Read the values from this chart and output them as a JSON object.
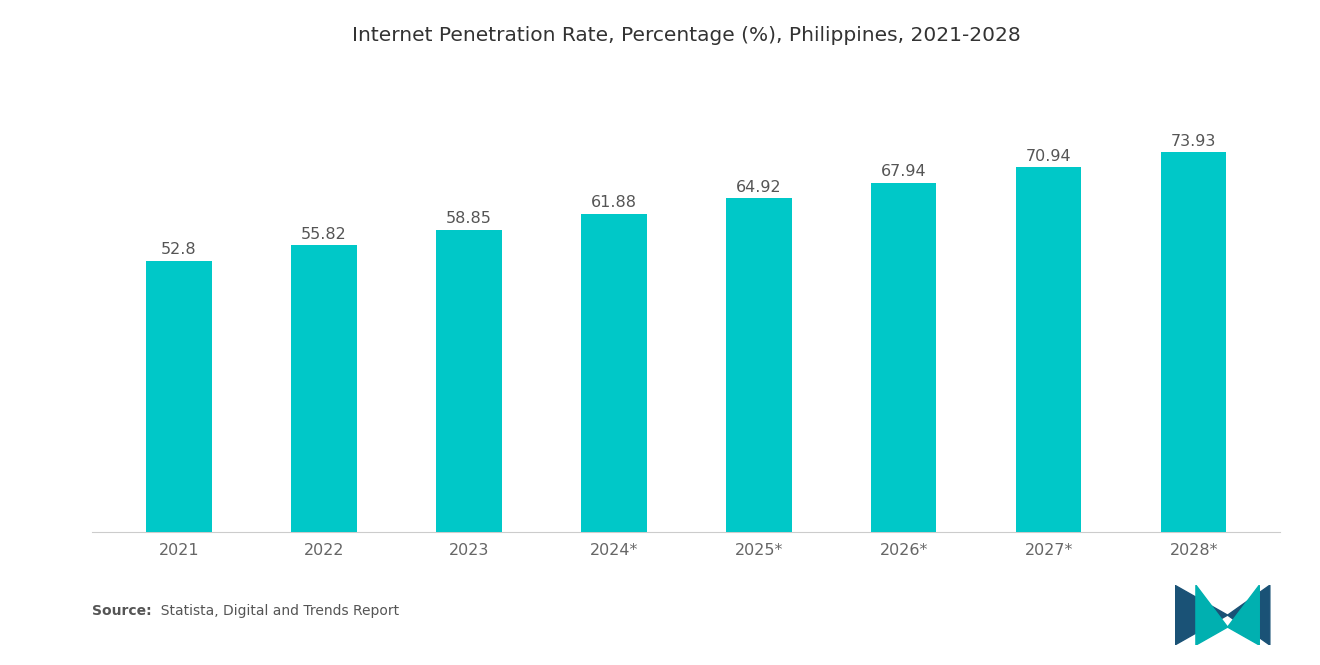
{
  "title": "Internet Penetration Rate, Percentage (%), Philippines, 2021-2028",
  "categories": [
    "2021",
    "2022",
    "2023",
    "2024*",
    "2025*",
    "2026*",
    "2027*",
    "2028*"
  ],
  "values": [
    52.8,
    55.82,
    58.85,
    61.88,
    64.92,
    67.94,
    70.94,
    73.93
  ],
  "bar_color": "#00C8C8",
  "background_color": "#ffffff",
  "title_fontsize": 14.5,
  "tick_fontsize": 11.5,
  "value_fontsize": 11.5,
  "source_bold": "Source:",
  "source_rest": "  Statista, Digital and Trends Report",
  "ylim": [
    0,
    88
  ],
  "bar_width": 0.45,
  "logo_color_blue": "#1a5276",
  "logo_color_teal": "#00b0b0"
}
